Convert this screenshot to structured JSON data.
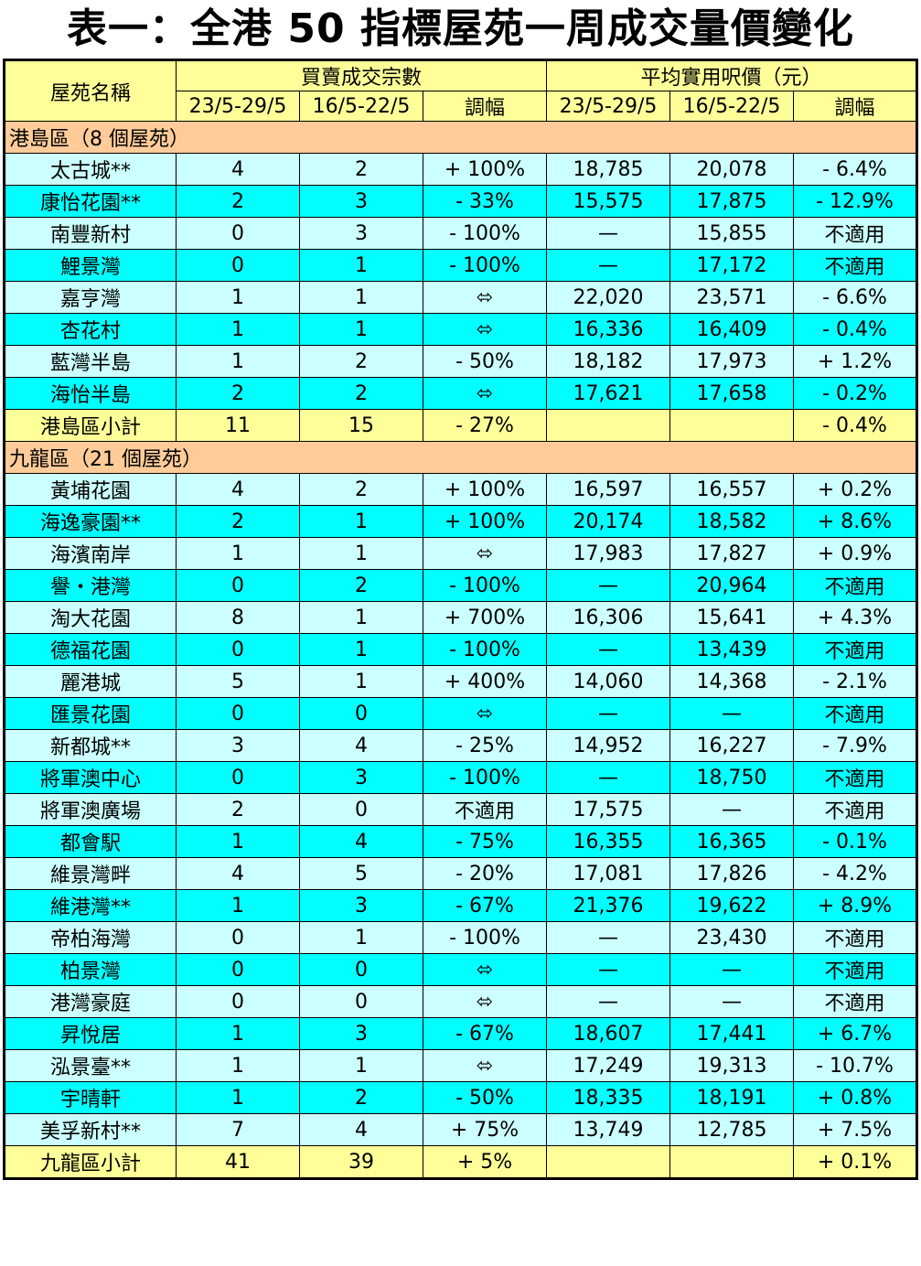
{
  "title": "表一：全港 50 指標屋苑一周成交量價變化",
  "header": {
    "estate_col": "屋苑名稱",
    "group_volume": "買賣成交宗數",
    "group_price": "平均實用呎價（元）",
    "week_current": "23/5-29/5",
    "week_prev": "16/5-22/5",
    "change": "調幅"
  },
  "colors": {
    "header_bg": "#ffff99",
    "section_bg": "#ffcc99",
    "row_light": "#ccffff",
    "row_cyan": "#00ffff",
    "subtotal_bg": "#ffff99"
  },
  "hk_island": {
    "section_label": "港島區（8 個屋苑）",
    "rows": [
      {
        "name": "太古城**",
        "vol_cur": "4",
        "vol_prev": "2",
        "vol_chg": "+ 100%",
        "price_cur": "18,785",
        "price_prev": "20,078",
        "price_chg": "- 6.4%"
      },
      {
        "name": "康怡花園**",
        "vol_cur": "2",
        "vol_prev": "3",
        "vol_chg": "- 33%",
        "price_cur": "15,575",
        "price_prev": "17,875",
        "price_chg": "- 12.9%"
      },
      {
        "name": "南豐新村",
        "vol_cur": "0",
        "vol_prev": "3",
        "vol_chg": "- 100%",
        "price_cur": "—",
        "price_prev": "15,855",
        "price_chg": "不適用"
      },
      {
        "name": "鯉景灣",
        "vol_cur": "0",
        "vol_prev": "1",
        "vol_chg": "- 100%",
        "price_cur": "—",
        "price_prev": "17,172",
        "price_chg": "不適用"
      },
      {
        "name": "嘉亨灣",
        "vol_cur": "1",
        "vol_prev": "1",
        "vol_chg": "⬄",
        "price_cur": "22,020",
        "price_prev": "23,571",
        "price_chg": "- 6.6%"
      },
      {
        "name": "杏花村",
        "vol_cur": "1",
        "vol_prev": "1",
        "vol_chg": "⬄",
        "price_cur": "16,336",
        "price_prev": "16,409",
        "price_chg": "- 0.4%"
      },
      {
        "name": "藍灣半島",
        "vol_cur": "1",
        "vol_prev": "2",
        "vol_chg": "- 50%",
        "price_cur": "18,182",
        "price_prev": "17,973",
        "price_chg": "+ 1.2%"
      },
      {
        "name": "海怡半島",
        "vol_cur": "2",
        "vol_prev": "2",
        "vol_chg": "⬄",
        "price_cur": "17,621",
        "price_prev": "17,658",
        "price_chg": "- 0.2%"
      }
    ],
    "subtotal": {
      "name": "港島區小計",
      "vol_cur": "11",
      "vol_prev": "15",
      "vol_chg": "- 27%",
      "price_cur": "",
      "price_prev": "",
      "price_chg": "- 0.4%"
    }
  },
  "kowloon": {
    "section_label": "九龍區（21 個屋苑）",
    "rows": [
      {
        "name": "黃埔花園",
        "vol_cur": "4",
        "vol_prev": "2",
        "vol_chg": "+ 100%",
        "price_cur": "16,597",
        "price_prev": "16,557",
        "price_chg": "+ 0.2%"
      },
      {
        "name": "海逸豪園**",
        "vol_cur": "2",
        "vol_prev": "1",
        "vol_chg": "+ 100%",
        "price_cur": "20,174",
        "price_prev": "18,582",
        "price_chg": "+ 8.6%"
      },
      {
        "name": "海濱南岸",
        "vol_cur": "1",
        "vol_prev": "1",
        "vol_chg": "⬄",
        "price_cur": "17,983",
        "price_prev": "17,827",
        "price_chg": "+ 0.9%"
      },
      {
        "name": "譽・港灣",
        "vol_cur": "0",
        "vol_prev": "2",
        "vol_chg": "- 100%",
        "price_cur": "—",
        "price_prev": "20,964",
        "price_chg": "不適用"
      },
      {
        "name": "淘大花園",
        "vol_cur": "8",
        "vol_prev": "1",
        "vol_chg": "+ 700%",
        "price_cur": "16,306",
        "price_prev": "15,641",
        "price_chg": "+ 4.3%"
      },
      {
        "name": "德福花園",
        "vol_cur": "0",
        "vol_prev": "1",
        "vol_chg": "- 100%",
        "price_cur": "—",
        "price_prev": "13,439",
        "price_chg": "不適用"
      },
      {
        "name": "麗港城",
        "vol_cur": "5",
        "vol_prev": "1",
        "vol_chg": "+ 400%",
        "price_cur": "14,060",
        "price_prev": "14,368",
        "price_chg": "- 2.1%"
      },
      {
        "name": "匯景花園",
        "vol_cur": "0",
        "vol_prev": "0",
        "vol_chg": "⬄",
        "price_cur": "—",
        "price_prev": "—",
        "price_chg": "不適用"
      },
      {
        "name": "新都城**",
        "vol_cur": "3",
        "vol_prev": "4",
        "vol_chg": "- 25%",
        "price_cur": "14,952",
        "price_prev": "16,227",
        "price_chg": "- 7.9%"
      },
      {
        "name": "將軍澳中心",
        "vol_cur": "0",
        "vol_prev": "3",
        "vol_chg": "- 100%",
        "price_cur": "—",
        "price_prev": "18,750",
        "price_chg": "不適用"
      },
      {
        "name": "將軍澳廣場",
        "vol_cur": "2",
        "vol_prev": "0",
        "vol_chg": "不適用",
        "price_cur": "17,575",
        "price_prev": "—",
        "price_chg": "不適用"
      },
      {
        "name": "都會駅",
        "vol_cur": "1",
        "vol_prev": "4",
        "vol_chg": "- 75%",
        "price_cur": "16,355",
        "price_prev": "16,365",
        "price_chg": "- 0.1%"
      },
      {
        "name": "維景灣畔",
        "vol_cur": "4",
        "vol_prev": "5",
        "vol_chg": "- 20%",
        "price_cur": "17,081",
        "price_prev": "17,826",
        "price_chg": "- 4.2%"
      },
      {
        "name": "維港灣**",
        "vol_cur": "1",
        "vol_prev": "3",
        "vol_chg": "- 67%",
        "price_cur": "21,376",
        "price_prev": "19,622",
        "price_chg": "+ 8.9%"
      },
      {
        "name": "帝柏海灣",
        "vol_cur": "0",
        "vol_prev": "1",
        "vol_chg": "- 100%",
        "price_cur": "—",
        "price_prev": "23,430",
        "price_chg": "不適用"
      },
      {
        "name": "柏景灣",
        "vol_cur": "0",
        "vol_prev": "0",
        "vol_chg": "⬄",
        "price_cur": "—",
        "price_prev": "—",
        "price_chg": "不適用"
      },
      {
        "name": "港灣豪庭",
        "vol_cur": "0",
        "vol_prev": "0",
        "vol_chg": "⬄",
        "price_cur": "—",
        "price_prev": "—",
        "price_chg": "不適用"
      },
      {
        "name": "昇悅居",
        "vol_cur": "1",
        "vol_prev": "3",
        "vol_chg": "- 67%",
        "price_cur": "18,607",
        "price_prev": "17,441",
        "price_chg": "+ 6.7%"
      },
      {
        "name": "泓景臺**",
        "vol_cur": "1",
        "vol_prev": "1",
        "vol_chg": "⬄",
        "price_cur": "17,249",
        "price_prev": "19,313",
        "price_chg": "- 10.7%"
      },
      {
        "name": "宇晴軒",
        "vol_cur": "1",
        "vol_prev": "2",
        "vol_chg": "- 50%",
        "price_cur": "18,335",
        "price_prev": "18,191",
        "price_chg": "+ 0.8%"
      },
      {
        "name": "美孚新村**",
        "vol_cur": "7",
        "vol_prev": "4",
        "vol_chg": "+ 75%",
        "price_cur": "13,749",
        "price_prev": "12,785",
        "price_chg": "+ 7.5%"
      }
    ],
    "subtotal": {
      "name": "九龍區小計",
      "vol_cur": "41",
      "vol_prev": "39",
      "vol_chg": "+ 5%",
      "price_cur": "",
      "price_prev": "",
      "price_chg": "+ 0.1%"
    }
  }
}
